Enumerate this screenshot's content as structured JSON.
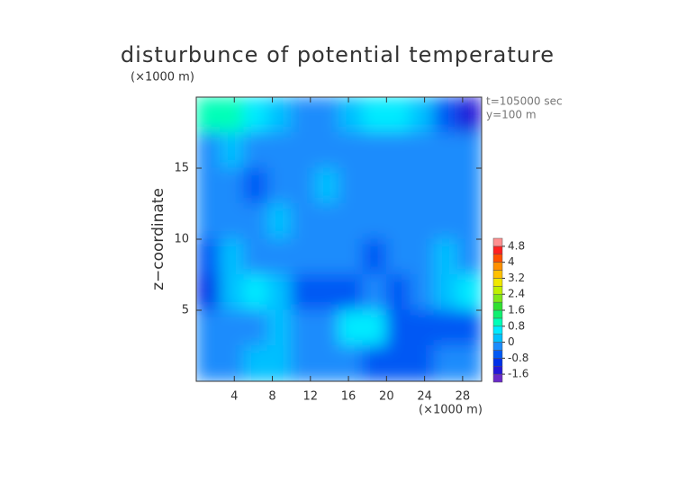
{
  "chart_data": {
    "type": "contour",
    "title": "disturbunce of potential temperature",
    "y_unit": "(×1000 m)",
    "x_unit": "(×1000 m)",
    "ylabel": "z−coordinate",
    "annotations": [
      "t=105000 sec",
      "y=100 m"
    ],
    "xlim": [
      0,
      30
    ],
    "ylim": [
      0,
      20
    ],
    "xticks": [
      4,
      8,
      12,
      16,
      20,
      24,
      28
    ],
    "yticks": [
      5,
      10,
      15
    ],
    "values": [
      [
        0.9,
        1.0,
        0.6,
        0.0,
        -0.3,
        -0.2,
        0.2,
        0.5,
        0.4,
        0.2,
        -0.6,
        -1.4
      ],
      [
        -0.2,
        0.0,
        -0.2,
        -0.3,
        -0.2,
        -0.2,
        -0.2,
        -0.2,
        -0.3,
        -0.2,
        -0.2,
        -0.3
      ],
      [
        -0.3,
        -0.2,
        -0.5,
        -0.2,
        -0.1,
        0.1,
        -0.2,
        -0.3,
        -0.2,
        -0.2,
        -0.3,
        -0.2
      ],
      [
        -0.4,
        -0.2,
        -0.3,
        0.2,
        -0.3,
        -0.1,
        -0.2,
        -0.2,
        -0.3,
        -0.2,
        -0.2,
        -0.3
      ],
      [
        -0.7,
        0.2,
        -0.4,
        -0.2,
        -0.3,
        -0.3,
        -0.3,
        -0.5,
        -0.3,
        -0.2,
        0.2,
        -0.3
      ],
      [
        -1.0,
        0.0,
        0.4,
        0.2,
        -0.6,
        -0.7,
        -0.5,
        -0.4,
        -0.6,
        -0.3,
        0.2,
        0.6
      ],
      [
        -0.3,
        -0.1,
        -0.3,
        0.1,
        -0.2,
        -0.3,
        0.6,
        0.5,
        -0.5,
        -0.6,
        -0.7,
        -0.6
      ],
      [
        -0.2,
        -0.2,
        0.1,
        0.2,
        -0.2,
        -0.3,
        -0.2,
        -0.5,
        -0.7,
        -0.7,
        -0.3,
        -0.3
      ]
    ],
    "colorbar": {
      "levels": [
        -2.0,
        -1.6,
        -1.2,
        -0.8,
        -0.4,
        0,
        0.4,
        0.8,
        1.2,
        1.6,
        2.0,
        2.4,
        2.8,
        3.2,
        3.6,
        4.0,
        4.4,
        4.8,
        5.2
      ],
      "colors": [
        "#6a2ac8",
        "#2418d8",
        "#0030e8",
        "#0058f4",
        "#1c8cfc",
        "#00c0ff",
        "#00eaff",
        "#00ffb8",
        "#10f070",
        "#30e030",
        "#80e818",
        "#c0f000",
        "#f0e800",
        "#ffc000",
        "#ff9000",
        "#ff5000",
        "#ff2020",
        "#ff9090"
      ],
      "ticks": [
        -1.6,
        -0.8,
        0,
        0.8,
        1.6,
        2.4,
        3.2,
        4,
        4.8
      ]
    }
  }
}
